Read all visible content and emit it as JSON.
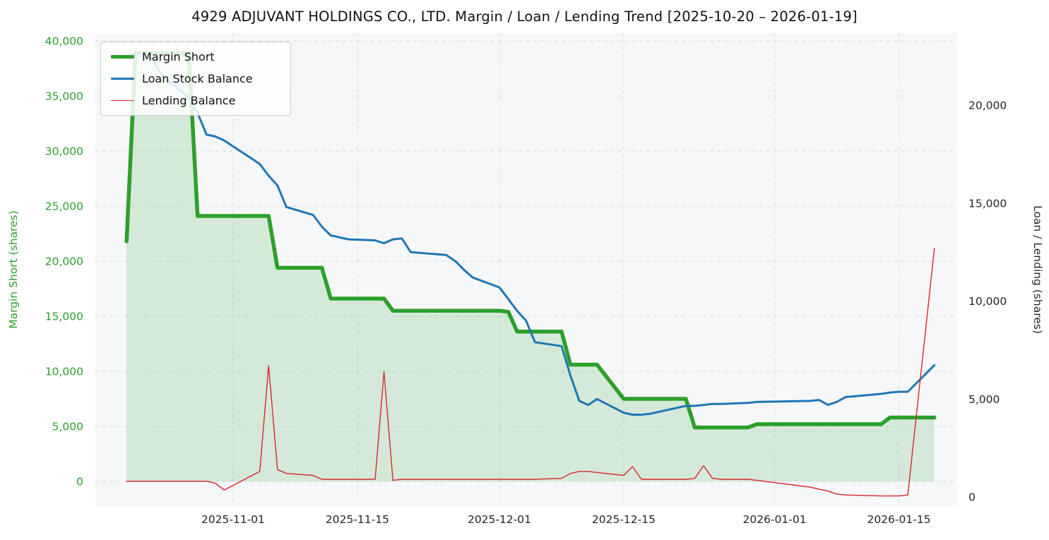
{
  "chart_data": {
    "type": "line",
    "title": "4929 ADJUVANT HOLDINGS CO., LTD. Margin / Loan / Lending Trend [2025-10-20 – 2026-01-19]",
    "ylabel_left": "Margin Short (shares)",
    "ylabel_right": "Loan / Lending (shares)",
    "legend_position": "upper-left",
    "grid": "dashed",
    "style": {
      "figure_bg": "#ffffff",
      "plot_bg": "#f6f7f9",
      "grid_color": "#d6dae1",
      "text_color": "#262626"
    },
    "x_ticks": [
      "2025-11-01",
      "2025-11-15",
      "2025-12-01",
      "2025-12-15",
      "2026-01-01",
      "2026-01-15"
    ],
    "x_tick_labels": [
      "2025-11-01",
      "2025-11-15",
      "2025-12-01",
      "2025-12-15",
      "2026-01-01",
      "2026-01-15"
    ],
    "left_axis": {
      "color": "#2ca02c",
      "ticks": [
        0,
        5000,
        10000,
        15000,
        20000,
        25000,
        30000,
        35000,
        40000
      ],
      "tick_labels": [
        "0",
        "5,000",
        "10,000",
        "15,000",
        "20,000",
        "25,000",
        "30,000",
        "35,000",
        "40,000"
      ],
      "lim": [
        -2244,
        40705
      ]
    },
    "right_axis": {
      "color": "#262626",
      "ticks": [
        0,
        5000,
        10000,
        15000,
        20000
      ],
      "tick_labels": [
        "0",
        "5,000",
        "10,000",
        "15,000",
        "20,000"
      ],
      "lim": [
        -468,
        23676
      ]
    },
    "dates": [
      "2025-10-20",
      "2025-10-21",
      "2025-10-22",
      "2025-10-23",
      "2025-10-24",
      "2025-10-27",
      "2025-10-28",
      "2025-10-29",
      "2025-10-30",
      "2025-10-31",
      "2025-11-04",
      "2025-11-05",
      "2025-11-06",
      "2025-11-07",
      "2025-11-10",
      "2025-11-11",
      "2025-11-12",
      "2025-11-13",
      "2025-11-14",
      "2025-11-17",
      "2025-11-18",
      "2025-11-19",
      "2025-11-20",
      "2025-11-21",
      "2025-11-25",
      "2025-11-26",
      "2025-11-27",
      "2025-11-28",
      "2025-12-01",
      "2025-12-02",
      "2025-12-03",
      "2025-12-04",
      "2025-12-05",
      "2025-12-08",
      "2025-12-09",
      "2025-12-10",
      "2025-12-11",
      "2025-12-12",
      "2025-12-15",
      "2025-12-16",
      "2025-12-17",
      "2025-12-18",
      "2025-12-19",
      "2025-12-22",
      "2025-12-23",
      "2025-12-24",
      "2025-12-25",
      "2025-12-26",
      "2025-12-29",
      "2025-12-30",
      "2026-01-05",
      "2026-01-06",
      "2026-01-07",
      "2026-01-08",
      "2026-01-09",
      "2026-01-13",
      "2026-01-14",
      "2026-01-15",
      "2026-01-16",
      "2026-01-19"
    ],
    "series": [
      {
        "id": "margin-short",
        "name": "Margin Short",
        "axis": "left",
        "color": "#2ca02c",
        "width": 5.5,
        "fill": true,
        "fill_color": "rgba(44,160,44,0.16)",
        "values": [
          21800,
          38900,
          38900,
          38900,
          38900,
          38900,
          24100,
          24100,
          24100,
          24100,
          24100,
          24100,
          19400,
          19400,
          19400,
          19400,
          16600,
          16600,
          16600,
          16600,
          16600,
          15500,
          15500,
          15500,
          15500,
          15500,
          15500,
          15500,
          15500,
          15400,
          13600,
          13600,
          13600,
          13600,
          10600,
          10600,
          10600,
          10600,
          7500,
          7500,
          7500,
          7500,
          7500,
          7500,
          4900,
          4900,
          4900,
          4900,
          4900,
          5200,
          5200,
          5200,
          5200,
          5200,
          5200,
          5200,
          5800,
          5800,
          5800,
          5800
        ]
      },
      {
        "id": "loan-stock-balance",
        "name": "Loan Stock Balance",
        "axis": "right",
        "color": "#1f77b4",
        "width": 3,
        "fill": false,
        "values": [
          22400,
          22600,
          22650,
          22300,
          21500,
          20400,
          19600,
          18500,
          18400,
          18200,
          17000,
          16400,
          15900,
          14800,
          14400,
          13800,
          13350,
          13250,
          13150,
          13100,
          12950,
          13150,
          13200,
          12500,
          12350,
          12050,
          11600,
          11200,
          10700,
          10100,
          9500,
          9000,
          7900,
          7700,
          6200,
          4900,
          4700,
          5000,
          4300,
          4200,
          4200,
          4250,
          4350,
          4650,
          4650,
          4700,
          4750,
          4750,
          4800,
          4850,
          4900,
          4950,
          4700,
          4850,
          5100,
          5260,
          5330,
          5370,
          5370,
          6730
        ]
      },
      {
        "id": "lending-balance",
        "name": "Lending Balance",
        "axis": "right",
        "color": "#d62728",
        "width": 1.4,
        "fill": false,
        "values": [
          800,
          800,
          800,
          800,
          800,
          800,
          800,
          800,
          700,
          350,
          1300,
          6700,
          1400,
          1200,
          1100,
          900,
          900,
          900,
          900,
          900,
          6400,
          850,
          900,
          900,
          900,
          900,
          900,
          900,
          900,
          900,
          900,
          900,
          900,
          950,
          1200,
          1300,
          1300,
          1250,
          1100,
          1550,
          900,
          900,
          900,
          900,
          950,
          1600,
          950,
          900,
          900,
          850,
          500,
          400,
          300,
          150,
          100,
          50,
          50,
          50,
          100,
          12700
        ]
      }
    ]
  }
}
